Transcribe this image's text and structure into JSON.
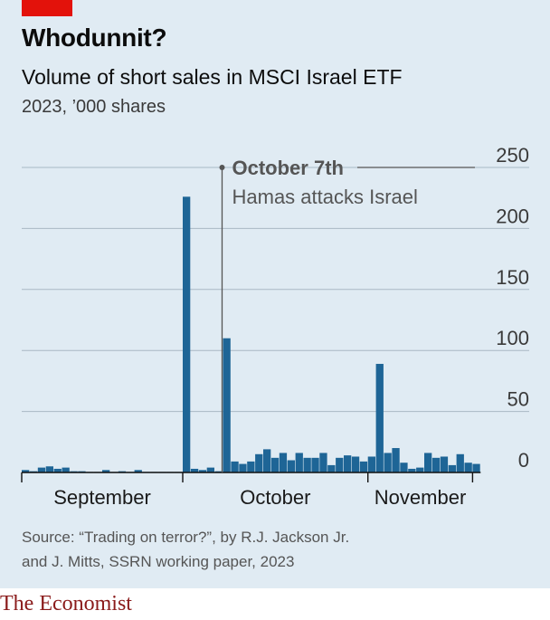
{
  "header": {
    "title": "Whodunnit?",
    "subtitle": "Volume of short sales in MSCI Israel ETF",
    "units": "2023, ’000 shares"
  },
  "annotation": {
    "date_label": "October 7th",
    "event_label": "Hamas attacks Israel"
  },
  "footer": {
    "source_line1": "Source: “Trading on terror?”, by R.J. Jackson Jr.",
    "source_line2": "and J. Mitts, SSRN working paper, 2023",
    "brand": "The Economist"
  },
  "colors": {
    "bar": "#1e6596",
    "panel": "#e0ebf3",
    "accent": "#e3120b",
    "grid": "#a9b8c4",
    "annotation": "#555555"
  },
  "chart_data": {
    "type": "bar",
    "title": "Volume of short sales in MSCI Israel ETF",
    "ylabel": "2023, ’000 shares",
    "ylim": [
      0,
      250
    ],
    "yticks": [
      0,
      50,
      100,
      150,
      200,
      250
    ],
    "ytick_labels": [
      "0",
      "50",
      "100",
      "150",
      "200",
      "250"
    ],
    "grid": true,
    "month_labels": [
      "September",
      "October",
      "November"
    ],
    "month_starts": [
      0,
      20,
      43
    ],
    "month_ends": [
      20,
      43,
      56
    ],
    "event_index": 25,
    "values": [
      2,
      1,
      4,
      5,
      3,
      4,
      1,
      1,
      0,
      0,
      2,
      0,
      1,
      0,
      2,
      0,
      0,
      0,
      0,
      0,
      226,
      3,
      2,
      4,
      1,
      110,
      9,
      7,
      9,
      15,
      19,
      12,
      16,
      10,
      16,
      12,
      12,
      16,
      6,
      12,
      14,
      13,
      9,
      13,
      89,
      16,
      20,
      8,
      3,
      4,
      16,
      12,
      13,
      6,
      15,
      8,
      7
    ]
  }
}
